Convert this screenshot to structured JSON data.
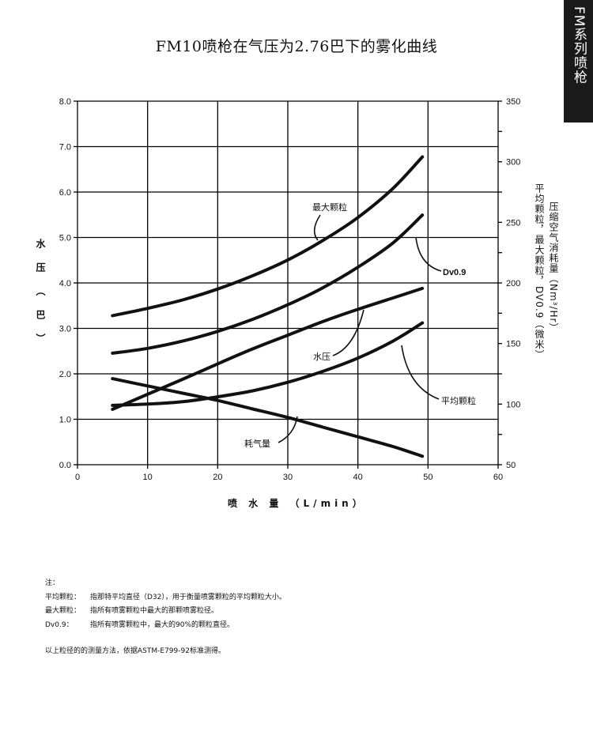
{
  "side_tab": {
    "label": "FM系列喷枪"
  },
  "chart_data": {
    "type": "line",
    "title": "FM10喷枪在气压为2.76巴下的雾化曲线",
    "xlabel": "喷 水 量 （L/min）",
    "ylabel_left": "水压（巴）",
    "ylabel_right_lines": [
      "压缩空气消耗量（Nm³/Hr）",
      "平均颗粒，最大颗粒，DV0.9（微米）"
    ],
    "x_range": [
      0,
      60
    ],
    "x_ticks": [
      "0",
      "10",
      "20",
      "30",
      "40",
      "50",
      "60"
    ],
    "y_left_range": [
      0,
      8
    ],
    "y_left_ticks": [
      "0.0",
      "1.0",
      "2.0",
      "3.0",
      "4.0",
      "5.0",
      "6.0",
      "7.0",
      "8.0"
    ],
    "y_right_range": [
      50,
      350
    ],
    "y_right_ticks": [
      "50",
      "100",
      "150",
      "200",
      "250",
      "300",
      "350"
    ],
    "grid": true,
    "series": [
      {
        "name": "最大颗粒",
        "axis": "right",
        "x": [
          5,
          10,
          15,
          20,
          25,
          30,
          35,
          40,
          45,
          49.2
        ],
        "y": [
          173,
          179,
          186,
          195,
          206,
          219,
          235,
          254,
          278,
          304
        ]
      },
      {
        "name": "Dv0.9",
        "axis": "right",
        "x": [
          5,
          10,
          15,
          20,
          25,
          30,
          35,
          40,
          45,
          49.2
        ],
        "y": [
          142,
          146,
          152,
          160,
          170,
          182,
          196,
          213,
          233,
          256
        ]
      },
      {
        "name": "水压",
        "axis": "left",
        "x": [
          5,
          10,
          15,
          20,
          25,
          30,
          35,
          40,
          45,
          49.2
        ],
        "y": [
          1.22,
          1.55,
          1.88,
          2.22,
          2.55,
          2.85,
          3.15,
          3.42,
          3.67,
          3.88
        ]
      },
      {
        "name": "平均颗粒",
        "axis": "right",
        "x": [
          5,
          10,
          15,
          20,
          25,
          30,
          35,
          40,
          45,
          49.2
        ],
        "y": [
          99,
          100,
          102,
          106,
          111,
          118,
          127,
          138,
          152,
          167
        ]
      },
      {
        "name": "耗气量",
        "axis": "right",
        "x": [
          5,
          10,
          15,
          20,
          25,
          30,
          35,
          40,
          45,
          49.2
        ],
        "y": [
          121,
          115,
          109,
          103,
          96,
          89,
          81,
          73,
          65,
          57
        ]
      }
    ]
  },
  "notes": {
    "heading": "注：",
    "items": [
      {
        "term": "平均颗粒：",
        "desc": "指那特平均直径（D32），用于衡量喷雾颗粒的平均颗粒大小。"
      },
      {
        "term": "最大颗粒：",
        "desc": "指所有喷雾颗粒中最大的那颗喷雾粒径。"
      },
      {
        "term": "Dv0.9：",
        "desc": "指所有喷雾颗粒中，最大的90%的颗粒直径。"
      }
    ],
    "footer": "以上粒径的的测量方法，依据ASTM-E799-92标准测得。"
  }
}
